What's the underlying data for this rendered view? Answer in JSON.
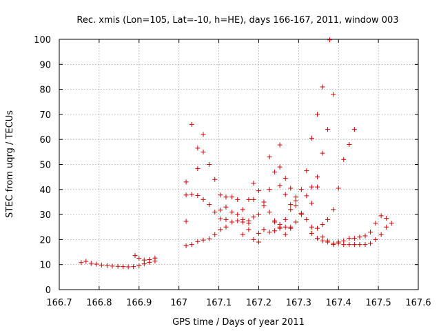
{
  "chart_data": {
    "type": "scatter",
    "title": "Rec. xmis (Lon=105, Lat=-10, h=HE), days 166-167, 2011, window 003",
    "xlabel": "GPS time / Days of year 2011",
    "ylabel": "STEC from uqrg / TECUs",
    "xlim": [
      166.7,
      167.6
    ],
    "ylim": [
      0,
      100
    ],
    "x_ticks": [
      "166.7",
      "166.8",
      "166.9",
      "167",
      "167.1",
      "167.2",
      "167.3",
      "167.4",
      "167.5",
      "167.6"
    ],
    "y_ticks": [
      "0",
      "10",
      "20",
      "30",
      "40",
      "50",
      "60",
      "70",
      "80",
      "90",
      "100"
    ],
    "grid": true,
    "marker": "+",
    "color": "#cc0000",
    "points": [
      [
        166.755,
        10.8
      ],
      [
        166.767,
        11.3
      ],
      [
        166.78,
        10.5
      ],
      [
        166.793,
        10.2
      ],
      [
        166.806,
        9.8
      ],
      [
        166.82,
        9.6
      ],
      [
        166.833,
        9.4
      ],
      [
        166.847,
        9.3
      ],
      [
        166.86,
        9.2
      ],
      [
        166.873,
        9.1
      ],
      [
        166.886,
        9.2
      ],
      [
        166.9,
        9.5
      ],
      [
        166.913,
        10.3
      ],
      [
        166.926,
        10.9
      ],
      [
        166.94,
        11.4
      ],
      [
        166.89,
        13.6
      ],
      [
        166.9,
        12.5
      ],
      [
        166.913,
        11.8
      ],
      [
        166.926,
        12.0
      ],
      [
        166.94,
        12.6
      ],
      [
        167.018,
        17.5
      ],
      [
        167.032,
        18.0
      ],
      [
        167.047,
        19.2
      ],
      [
        167.061,
        19.8
      ],
      [
        167.076,
        20.3
      ],
      [
        167.09,
        22.0
      ],
      [
        167.104,
        24.0
      ],
      [
        167.118,
        25.0
      ],
      [
        167.018,
        27.3
      ],
      [
        167.018,
        43.0
      ],
      [
        167.032,
        66.0
      ],
      [
        167.047,
        56.5
      ],
      [
        167.061,
        55.0
      ],
      [
        167.061,
        62.0
      ],
      [
        167.076,
        50.0
      ],
      [
        167.09,
        44.0
      ],
      [
        167.047,
        48.3
      ],
      [
        167.018,
        37.8
      ],
      [
        167.032,
        38.0
      ],
      [
        167.047,
        37.6
      ],
      [
        167.061,
        36.0
      ],
      [
        167.076,
        34.0
      ],
      [
        167.09,
        31.0
      ],
      [
        167.104,
        37.8
      ],
      [
        167.118,
        37.0
      ],
      [
        167.133,
        37.0
      ],
      [
        167.147,
        36.0
      ],
      [
        167.104,
        31.8
      ],
      [
        167.118,
        33.0
      ],
      [
        167.133,
        31.0
      ],
      [
        167.147,
        30.0
      ],
      [
        167.16,
        28.0
      ],
      [
        167.175,
        27.5
      ],
      [
        167.104,
        28.3
      ],
      [
        167.118,
        28.0
      ],
      [
        167.133,
        27.0
      ],
      [
        167.147,
        27.5
      ],
      [
        167.16,
        27.0
      ],
      [
        167.175,
        26.5
      ],
      [
        167.16,
        32.0
      ],
      [
        167.175,
        36.0
      ],
      [
        167.16,
        22.0
      ],
      [
        167.175,
        24.0
      ],
      [
        167.187,
        20.0
      ],
      [
        167.2,
        19.0
      ],
      [
        167.187,
        42.5
      ],
      [
        167.2,
        39.5
      ],
      [
        167.213,
        35.0
      ],
      [
        167.227,
        31.0
      ],
      [
        167.24,
        27.5
      ],
      [
        167.253,
        26.0
      ],
      [
        167.267,
        25.0
      ],
      [
        167.28,
        24.5
      ],
      [
        167.187,
        36.0
      ],
      [
        167.2,
        30.0
      ],
      [
        167.213,
        33.5
      ],
      [
        167.227,
        40.0
      ],
      [
        167.24,
        47.0
      ],
      [
        167.253,
        57.8
      ],
      [
        167.227,
        53.0
      ],
      [
        167.253,
        49.0
      ],
      [
        167.267,
        44.5
      ],
      [
        167.28,
        40.5
      ],
      [
        167.293,
        35.5
      ],
      [
        167.187,
        29.0
      ],
      [
        167.2,
        22.5
      ],
      [
        167.213,
        24.0
      ],
      [
        167.227,
        23.0
      ],
      [
        167.24,
        23.5
      ],
      [
        167.253,
        25.0
      ],
      [
        167.267,
        28.0
      ],
      [
        167.28,
        32.0
      ],
      [
        167.293,
        37.0
      ],
      [
        167.307,
        40.0
      ],
      [
        167.32,
        47.5
      ],
      [
        167.333,
        60.5
      ],
      [
        167.347,
        70.0
      ],
      [
        167.36,
        81.0
      ],
      [
        167.373,
        64.0
      ],
      [
        167.378,
        99.8
      ],
      [
        167.387,
        78.0
      ],
      [
        167.347,
        41.0
      ],
      [
        167.333,
        41.0
      ],
      [
        167.36,
        54.5
      ],
      [
        167.347,
        45.0
      ],
      [
        167.253,
        41.5
      ],
      [
        167.267,
        38.0
      ],
      [
        167.28,
        34.0
      ],
      [
        167.293,
        33.5
      ],
      [
        167.307,
        30.0
      ],
      [
        167.32,
        37.5
      ],
      [
        167.333,
        34.5
      ],
      [
        167.24,
        27.0
      ],
      [
        167.253,
        24.5
      ],
      [
        167.267,
        22.0
      ],
      [
        167.28,
        25.0
      ],
      [
        167.293,
        27.0
      ],
      [
        167.307,
        30.5
      ],
      [
        167.32,
        28.0
      ],
      [
        167.333,
        25.0
      ],
      [
        167.347,
        24.5
      ],
      [
        167.36,
        26.0
      ],
      [
        167.373,
        28.0
      ],
      [
        167.387,
        32.0
      ],
      [
        167.4,
        40.5
      ],
      [
        167.413,
        52.0
      ],
      [
        167.427,
        58.0
      ],
      [
        167.44,
        64.0
      ],
      [
        167.333,
        22.5
      ],
      [
        167.347,
        20.5
      ],
      [
        167.36,
        19.5
      ],
      [
        167.373,
        19.0
      ],
      [
        167.387,
        18.5
      ],
      [
        167.4,
        18.5
      ],
      [
        167.413,
        18.0
      ],
      [
        167.427,
        18.0
      ],
      [
        167.44,
        18.0
      ],
      [
        167.453,
        18.0
      ],
      [
        167.467,
        18.0
      ],
      [
        167.48,
        18.5
      ],
      [
        167.493,
        20.0
      ],
      [
        167.507,
        22.0
      ],
      [
        167.36,
        21.0
      ],
      [
        167.373,
        19.5
      ],
      [
        167.387,
        18.0
      ],
      [
        167.4,
        19.0
      ],
      [
        167.413,
        19.5
      ],
      [
        167.427,
        20.5
      ],
      [
        167.44,
        20.5
      ],
      [
        167.453,
        21.0
      ],
      [
        167.467,
        21.5
      ],
      [
        167.48,
        23.0
      ],
      [
        167.493,
        26.5
      ],
      [
        167.507,
        29.5
      ],
      [
        167.52,
        28.5
      ],
      [
        167.533,
        26.5
      ],
      [
        167.52,
        25.0
      ]
    ]
  }
}
